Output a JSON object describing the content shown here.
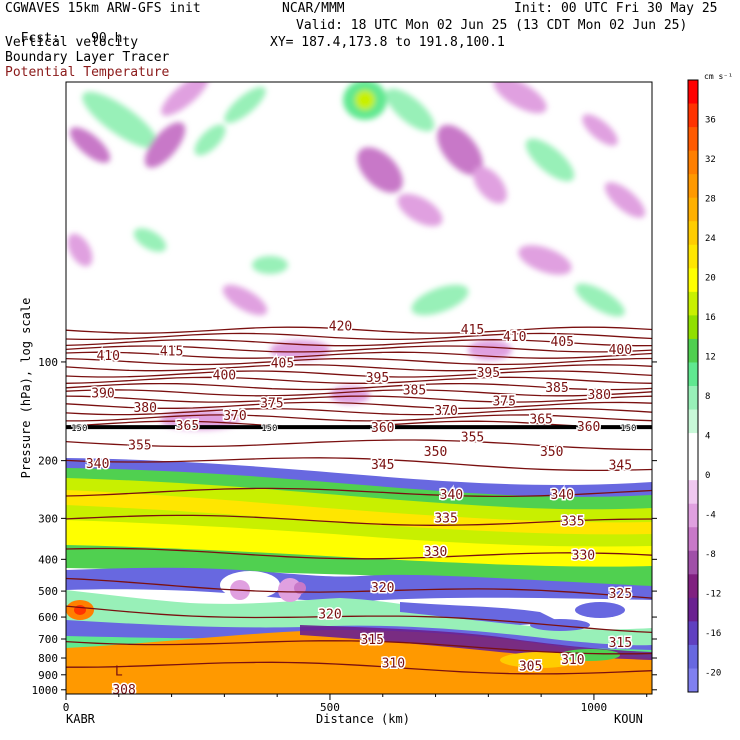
{
  "header": {
    "model": "CGWAVES 15km ARW-GFS init",
    "fcst_label": "Fcst:",
    "fcst_value": "90 h",
    "center": "NCAR/MMM",
    "init": "Init: 00 UTC Fri 30 May 25",
    "valid": "Valid: 18 UTC Mon 02 Jun 25 (13 CDT Mon 02 Jun 25)",
    "xy": "XY= 187.4,173.8 to 191.8,100.1",
    "field1": "Vertical velocity",
    "field2": "Boundary Layer Tracer",
    "field3": "Potential Temperature",
    "field3_color": "#8b1a1a"
  },
  "chart_data": {
    "type": "heatmap",
    "title": "",
    "xlabel": "Distance (km)",
    "ylabel": "Pressure (hPa), log scale",
    "x_ticks": [
      "0",
      "500",
      "1000"
    ],
    "x_tick_values": [
      0,
      500,
      1000
    ],
    "x_range": [
      0,
      1110
    ],
    "y_ticks": [
      "100",
      "200",
      "300",
      "400",
      "500",
      "600",
      "700",
      "800",
      "900",
      "1000"
    ],
    "y_tick_values": [
      100,
      200,
      300,
      400,
      500,
      600,
      700,
      800,
      900,
      1000
    ],
    "y_range_hpa": [
      1030,
      14
    ],
    "y_scale": "log",
    "endpoints": {
      "left": "KABR",
      "right": "KOUN"
    },
    "colorbar": {
      "units": "cm s⁻¹",
      "labels": [
        "36",
        "32",
        "28",
        "24",
        "20",
        "16",
        "12",
        "8",
        "4",
        "0",
        "-4",
        "-8",
        "-12",
        "-16",
        "-20"
      ],
      "label_values": [
        36,
        32,
        28,
        24,
        20,
        16,
        12,
        8,
        4,
        0,
        -4,
        -8,
        -12,
        -16,
        -20
      ],
      "range": [
        -22,
        40
      ],
      "colors": [
        "#ff0000",
        "#ff3300",
        "#ff5a00",
        "#ff7f00",
        "#ff9900",
        "#ffb000",
        "#ffcc00",
        "#ffe600",
        "#ffff00",
        "#c8f000",
        "#90e000",
        "#50d050",
        "#60e890",
        "#98f0b8",
        "#c8f8d8",
        "#ffffff",
        "#ffffff",
        "#f0c8f0",
        "#e0a0e0",
        "#c878c8",
        "#a050a8",
        "#802080",
        "#6a2090",
        "#6040c0",
        "#6868e0",
        "#8080f0"
      ]
    },
    "theta_labels": [
      {
        "text": "420",
        "x": 520,
        "p": 78
      },
      {
        "text": "415",
        "x": 200,
        "p": 93
      },
      {
        "text": "415",
        "x": 770,
        "p": 80
      },
      {
        "text": "410",
        "x": 80,
        "p": 96
      },
      {
        "text": "410",
        "x": 850,
        "p": 84
      },
      {
        "text": "405",
        "x": 410,
        "p": 101
      },
      {
        "text": "405",
        "x": 940,
        "p": 87
      },
      {
        "text": "400",
        "x": 300,
        "p": 110
      },
      {
        "text": "400",
        "x": 1050,
        "p": 92
      },
      {
        "text": "395",
        "x": 590,
        "p": 112
      },
      {
        "text": "395",
        "x": 800,
        "p": 108
      },
      {
        "text": "390",
        "x": 70,
        "p": 125
      },
      {
        "text": "385",
        "x": 660,
        "p": 122
      },
      {
        "text": "385",
        "x": 930,
        "p": 120
      },
      {
        "text": "380",
        "x": 150,
        "p": 138
      },
      {
        "text": "380",
        "x": 1010,
        "p": 126
      },
      {
        "text": "375",
        "x": 390,
        "p": 134
      },
      {
        "text": "375",
        "x": 830,
        "p": 132
      },
      {
        "text": "370",
        "x": 320,
        "p": 146
      },
      {
        "text": "370",
        "x": 720,
        "p": 141
      },
      {
        "text": "365",
        "x": 230,
        "p": 157
      },
      {
        "text": "365",
        "x": 900,
        "p": 150
      },
      {
        "text": "360",
        "x": 600,
        "p": 159
      },
      {
        "text": "360",
        "x": 990,
        "p": 158
      },
      {
        "text": "355",
        "x": 140,
        "p": 180
      },
      {
        "text": "355",
        "x": 770,
        "p": 170
      },
      {
        "text": "350",
        "x": 700,
        "p": 188
      },
      {
        "text": "350",
        "x": 920,
        "p": 188
      },
      {
        "text": "345",
        "x": 600,
        "p": 206
      },
      {
        "text": "345",
        "x": 1050,
        "p": 207
      },
      {
        "text": "340",
        "x": 60,
        "p": 205
      },
      {
        "text": "340",
        "x": 730,
        "p": 255
      },
      {
        "text": "340",
        "x": 940,
        "p": 255
      },
      {
        "text": "335",
        "x": 720,
        "p": 300
      },
      {
        "text": "335",
        "x": 960,
        "p": 307
      },
      {
        "text": "330",
        "x": 700,
        "p": 380
      },
      {
        "text": "330",
        "x": 980,
        "p": 390
      },
      {
        "text": "325",
        "x": 1050,
        "p": 510
      },
      {
        "text": "320",
        "x": 600,
        "p": 490
      },
      {
        "text": "320",
        "x": 500,
        "p": 590
      },
      {
        "text": "315",
        "x": 580,
        "p": 705
      },
      {
        "text": "315",
        "x": 1050,
        "p": 720
      },
      {
        "text": "310",
        "x": 620,
        "p": 830
      },
      {
        "text": "310",
        "x": 960,
        "p": 810
      },
      {
        "text": "305",
        "x": 880,
        "p": 850
      },
      {
        "text": "308",
        "x": 110,
        "p": 1000
      }
    ],
    "tropopause_labels": [
      {
        "text": "150",
        "x": 10,
        "p": 158
      },
      {
        "text": "150",
        "x": 370,
        "p": 158
      },
      {
        "text": "150",
        "x": 1050,
        "p": 158
      }
    ],
    "low_label": {
      "text": "L",
      "x": 100,
      "p": 880
    }
  }
}
